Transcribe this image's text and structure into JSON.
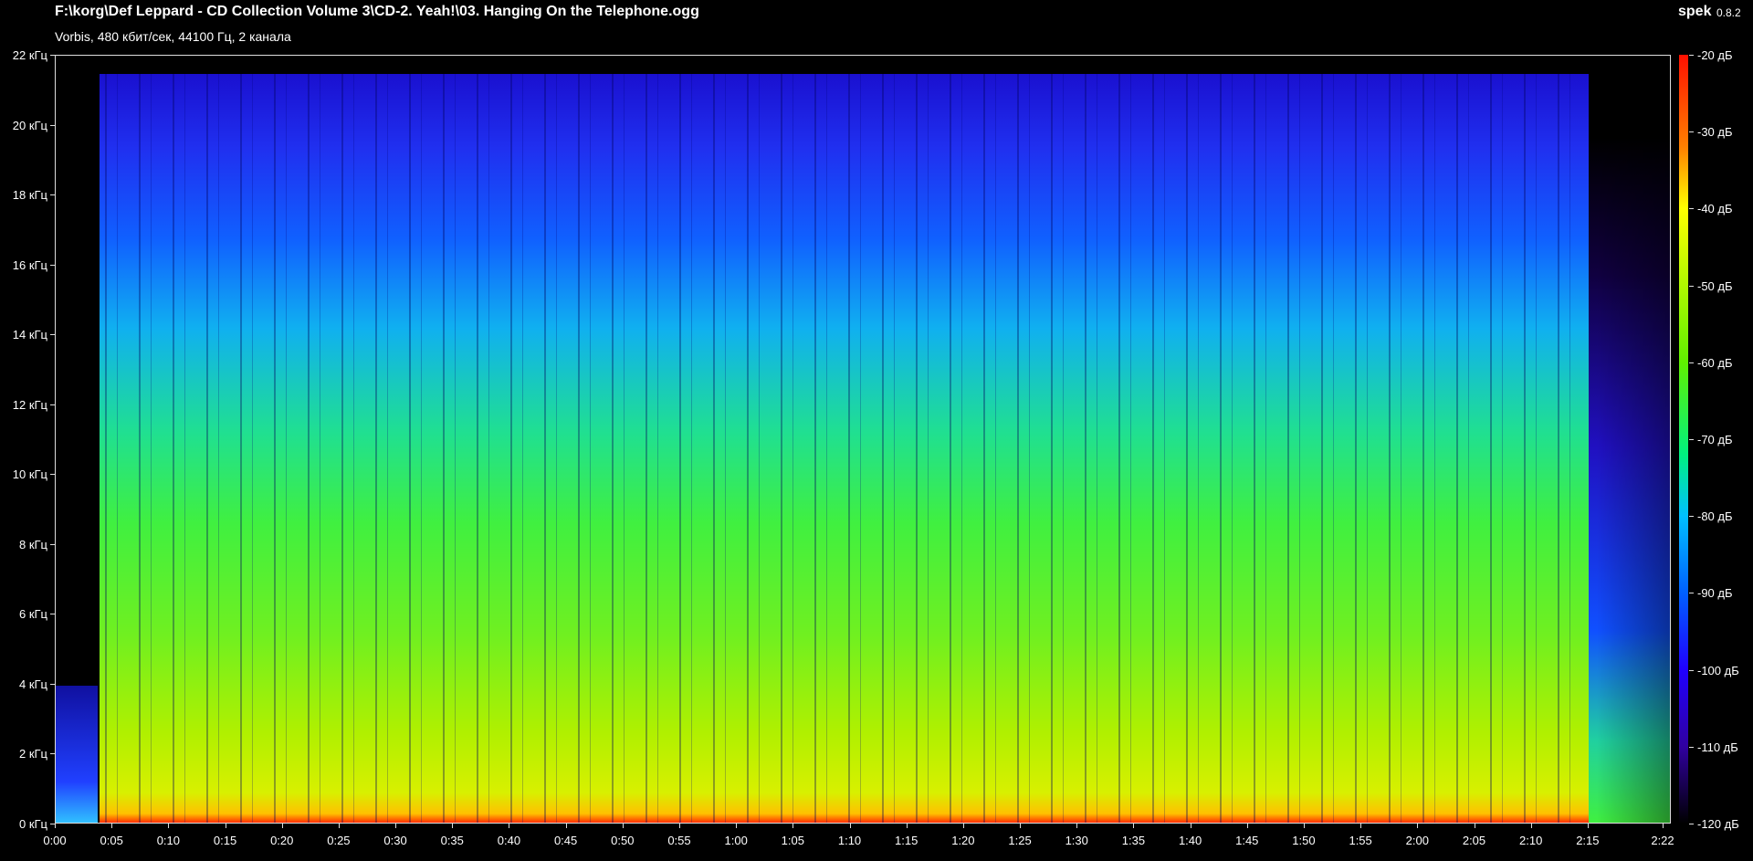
{
  "header": {
    "title": "F:\\korg\\Def Leppard - CD Collection Volume 3\\CD-2. Yeah!\\03. Hanging On the Telephone.ogg",
    "subtitle": "Vorbis, 480 кбит/сек, 44100 Гц, 2 канала",
    "app": "spek",
    "version": "0.8.2"
  },
  "frequency_axis": {
    "labels": [
      "0 кГц",
      "2 кГц",
      "4 кГц",
      "6 кГц",
      "8 кГц",
      "10 кГц",
      "12 кГц",
      "14 кГц",
      "16 кГц",
      "18 кГц",
      "20 кГц",
      "22 кГц"
    ]
  },
  "time_axis": {
    "labels": [
      "0:00",
      "0:05",
      "0:10",
      "0:15",
      "0:20",
      "0:25",
      "0:30",
      "0:35",
      "0:40",
      "0:45",
      "0:50",
      "0:55",
      "1:00",
      "1:05",
      "1:10",
      "1:15",
      "1:20",
      "1:25",
      "1:30",
      "1:35",
      "1:40",
      "1:45",
      "1:50",
      "1:55",
      "2:00",
      "2:05",
      "2:10",
      "2:15",
      "2:22"
    ]
  },
  "level_scale": {
    "labels": [
      "-20 дБ",
      "-30 дБ",
      "-40 дБ",
      "-50 дБ",
      "-60 дБ",
      "-70 дБ",
      "-80 дБ",
      "-90 дБ",
      "-100 дБ",
      "-110 дБ",
      "-120 дБ"
    ]
  }
}
